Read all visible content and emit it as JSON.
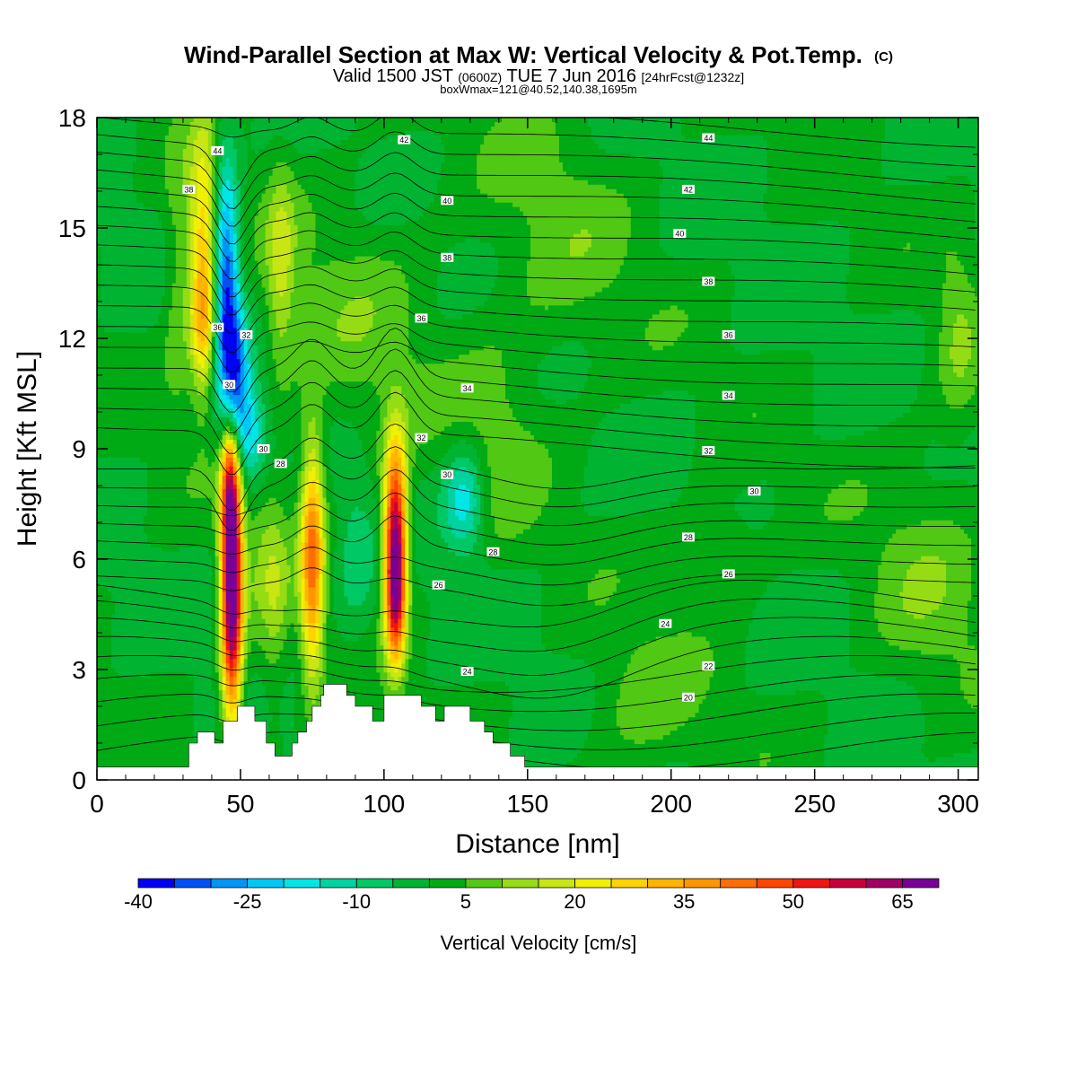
{
  "header": {
    "title": "Wind-Parallel Section at Max W: Vertical Velocity & Pot.Temp.",
    "title_mark": "(C)",
    "valid_prefix": "Valid 1500 JST",
    "valid_utc": "(0600Z)",
    "valid_date": "TUE 7 Jun 2016",
    "valid_fcst": "[24hrFcst@1232z]",
    "box_info": "boxWmax=121@40.52,140.38,1695m"
  },
  "chart_data": {
    "type": "heatmap",
    "xlabel": "Distance [nm]",
    "ylabel": "Height [Kft MSL]",
    "xlim": [
      0,
      307
    ],
    "ylim": [
      0,
      18
    ],
    "x_ticks": [
      "0",
      "50",
      "100",
      "150",
      "200",
      "250",
      "300"
    ],
    "x_tick_values": [
      0,
      50,
      100,
      150,
      200,
      250,
      300
    ],
    "y_ticks": [
      "0",
      "3",
      "6",
      "9",
      "12",
      "15",
      "18"
    ],
    "y_tick_values": [
      0,
      3,
      6,
      9,
      12,
      15,
      18
    ],
    "colorbar": {
      "label": "Vertical Velocity [cm/s]",
      "tick_labels": [
        "-40",
        "-25",
        "-10",
        "5",
        "20",
        "35",
        "50",
        "65"
      ],
      "tick_values": [
        -40,
        -25,
        -10,
        5,
        20,
        35,
        50,
        65
      ],
      "bins": [
        -40,
        -35,
        -30,
        -25,
        -20,
        -15,
        -10,
        -5,
        0,
        5,
        10,
        15,
        20,
        25,
        30,
        35,
        40,
        45,
        50,
        55,
        60,
        65,
        70
      ],
      "colors": [
        "#0000f5",
        "#0050f5",
        "#0096f5",
        "#00c8f5",
        "#00e6e6",
        "#00d2a0",
        "#00c864",
        "#00b432",
        "#00aa14",
        "#50c814",
        "#96dc14",
        "#c8e614",
        "#f0f000",
        "#ffd200",
        "#ffb400",
        "#ff9600",
        "#ff6e00",
        "#ff4600",
        "#f01414",
        "#c8003c",
        "#a00064",
        "#780096"
      ]
    },
    "terrain_kft": [
      [
        0,
        0.35
      ],
      [
        32,
        0.35
      ],
      [
        32,
        1.0
      ],
      [
        35,
        1.0
      ],
      [
        35,
        1.3
      ],
      [
        41,
        1.3
      ],
      [
        41,
        1.0
      ],
      [
        44,
        1.0
      ],
      [
        44,
        1.6
      ],
      [
        49,
        1.6
      ],
      [
        49,
        2.0
      ],
      [
        55,
        2.0
      ],
      [
        55,
        1.6
      ],
      [
        59,
        1.6
      ],
      [
        59,
        1.0
      ],
      [
        62,
        1.0
      ],
      [
        62,
        0.65
      ],
      [
        68,
        0.65
      ],
      [
        68,
        1.0
      ],
      [
        70,
        1.0
      ],
      [
        70,
        1.3
      ],
      [
        73,
        1.3
      ],
      [
        73,
        1.6
      ],
      [
        75,
        1.6
      ],
      [
        75,
        2.0
      ],
      [
        78,
        2.0
      ],
      [
        78,
        2.3
      ],
      [
        79,
        2.3
      ],
      [
        79,
        2.6
      ],
      [
        87,
        2.6
      ],
      [
        87,
        2.3
      ],
      [
        90,
        2.3
      ],
      [
        90,
        2.0
      ],
      [
        96,
        2.0
      ],
      [
        96,
        1.6
      ],
      [
        100,
        1.6
      ],
      [
        100,
        2.3
      ],
      [
        113,
        2.3
      ],
      [
        113,
        2.0
      ],
      [
        118,
        2.0
      ],
      [
        118,
        1.6
      ],
      [
        121,
        1.6
      ],
      [
        121,
        2.0
      ],
      [
        130,
        2.0
      ],
      [
        130,
        1.6
      ],
      [
        135,
        1.6
      ],
      [
        135,
        1.3
      ],
      [
        138,
        1.3
      ],
      [
        138,
        1.0
      ],
      [
        144,
        1.0
      ],
      [
        144,
        0.65
      ],
      [
        149,
        0.65
      ],
      [
        149,
        0.35
      ],
      [
        307,
        0.35
      ]
    ],
    "w_features": [
      {
        "x": 47,
        "z": 5.2,
        "sx": 2.6,
        "sz": 2.5,
        "w": 75
      },
      {
        "x": 46,
        "z": 8.0,
        "sx": 2.2,
        "sz": 1.3,
        "w": 30
      },
      {
        "x": 75,
        "z": 6.0,
        "sx": 2.8,
        "sz": 2.3,
        "w": 40
      },
      {
        "x": 104,
        "z": 6.6,
        "sx": 2.8,
        "sz": 1.8,
        "w": 62
      },
      {
        "x": 104,
        "z": 4.8,
        "sx": 2.3,
        "sz": 1.2,
        "w": 30
      },
      {
        "x": 37,
        "z": 14.5,
        "sx": 3.5,
        "sz": 2.3,
        "w": 28
      },
      {
        "x": 37,
        "z": 12.2,
        "sx": 3.0,
        "sz": 1.2,
        "w": 18
      },
      {
        "x": 45,
        "z": 13.2,
        "sx": 3.0,
        "sz": 2.6,
        "w": -36
      },
      {
        "x": 49,
        "z": 10.8,
        "sx": 3.0,
        "sz": 1.4,
        "w": -25
      },
      {
        "x": 54,
        "z": 9.3,
        "sx": 4.0,
        "sz": 0.9,
        "w": -18
      },
      {
        "x": 128,
        "z": 7.6,
        "sx": 5.0,
        "sz": 1.0,
        "w": -20
      },
      {
        "x": 90,
        "z": 6.0,
        "sx": 5.0,
        "sz": 1.8,
        "w": -8
      },
      {
        "x": 58,
        "z": 4.5,
        "sx": 2.2,
        "sz": 1.3,
        "w": -4
      },
      {
        "x": 60,
        "z": 5.0,
        "sx": 4.5,
        "sz": 2.0,
        "w": 14
      },
      {
        "x": 64,
        "z": 13.8,
        "sx": 3.5,
        "sz": 2.0,
        "w": 14
      },
      {
        "x": 28,
        "z": 13.5,
        "sx": 3.5,
        "sz": 2.5,
        "w": 9
      },
      {
        "x": 90,
        "z": 12.0,
        "sx": 20.0,
        "sz": 3.0,
        "w": 6
      },
      {
        "x": 190,
        "z": 2.0,
        "sx": 15.0,
        "sz": 1.5,
        "w": 7
      },
      {
        "x": 290,
        "z": 5.5,
        "sx": 15.0,
        "sz": 2.5,
        "w": 7
      },
      {
        "x": 300,
        "z": 12.0,
        "sx": 5.0,
        "sz": 2.0,
        "w": 8
      },
      {
        "x": 160,
        "z": 14.5,
        "sx": 20.0,
        "sz": 3.0,
        "w": 6
      },
      {
        "x": 217,
        "z": 6.3,
        "sx": 10.0,
        "sz": 1.0,
        "w": 7
      },
      {
        "x": 140,
        "z": 9.0,
        "sx": 10.0,
        "sz": 2.0,
        "w": 6
      }
    ],
    "theta_labels": [
      {
        "text": "44",
        "x": 213,
        "z": 17.45
      },
      {
        "text": "42",
        "x": 107,
        "z": 17.4
      },
      {
        "text": "42",
        "x": 206,
        "z": 16.05
      },
      {
        "text": "40",
        "x": 122,
        "z": 15.75
      },
      {
        "text": "40",
        "x": 203,
        "z": 14.85
      },
      {
        "text": "38",
        "x": 122,
        "z": 14.2
      },
      {
        "text": "38",
        "x": 213,
        "z": 13.55
      },
      {
        "text": "36",
        "x": 113,
        "z": 12.55
      },
      {
        "text": "36",
        "x": 220,
        "z": 12.1
      },
      {
        "text": "34",
        "x": 129,
        "z": 10.65
      },
      {
        "text": "34",
        "x": 220,
        "z": 10.45
      },
      {
        "text": "32",
        "x": 113,
        "z": 9.3
      },
      {
        "text": "32",
        "x": 213,
        "z": 8.95
      },
      {
        "text": "30",
        "x": 122,
        "z": 8.3
      },
      {
        "text": "30",
        "x": 229,
        "z": 7.85
      },
      {
        "text": "28",
        "x": 138,
        "z": 6.2
      },
      {
        "text": "28",
        "x": 206,
        "z": 6.6
      },
      {
        "text": "26",
        "x": 119,
        "z": 5.3
      },
      {
        "text": "26",
        "x": 220,
        "z": 5.6
      },
      {
        "text": "24",
        "x": 198,
        "z": 4.25
      },
      {
        "text": "22",
        "x": 213,
        "z": 3.1
      },
      {
        "text": "20",
        "x": 206,
        "z": 2.25
      },
      {
        "text": "24",
        "x": 129,
        "z": 2.95
      },
      {
        "text": "44",
        "x": 42,
        "z": 17.1
      },
      {
        "text": "38",
        "x": 32,
        "z": 16.05
      },
      {
        "text": "36",
        "x": 42,
        "z": 12.3
      },
      {
        "text": "32",
        "x": 52,
        "z": 12.1
      },
      {
        "text": "30",
        "x": 46,
        "z": 10.75
      },
      {
        "text": "30",
        "x": 58,
        "z": 9.0
      },
      {
        "text": "28",
        "x": 64,
        "z": 8.6
      }
    ]
  }
}
